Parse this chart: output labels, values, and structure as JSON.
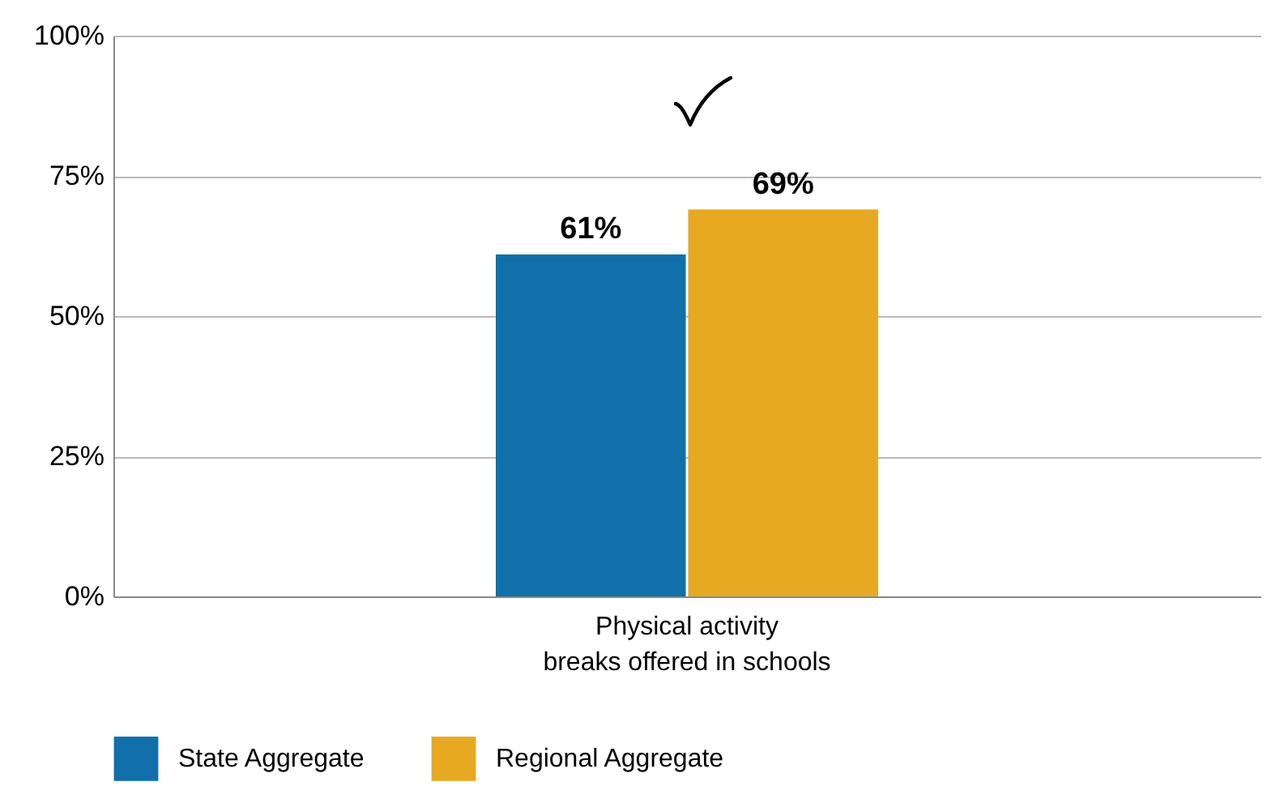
{
  "chart_data": {
    "type": "bar",
    "categories": [
      "Physical activity\nbreaks offered in schools"
    ],
    "series": [
      {
        "name": "State Aggregate",
        "color": "#1170aa",
        "values": [
          61
        ]
      },
      {
        "name": "Regional Aggregate",
        "color": "#e8a922",
        "values": [
          69
        ]
      }
    ],
    "ylim": [
      0,
      100
    ],
    "yticks": [
      {
        "value": 0,
        "label": "0%"
      },
      {
        "value": 25,
        "label": "25%"
      },
      {
        "value": 50,
        "label": "50%"
      },
      {
        "value": 75,
        "label": "75%"
      },
      {
        "value": 100,
        "label": "100%"
      }
    ],
    "value_labels": [
      [
        "61%"
      ],
      [
        "69%"
      ]
    ],
    "grid": "y",
    "legend": "bottom"
  }
}
